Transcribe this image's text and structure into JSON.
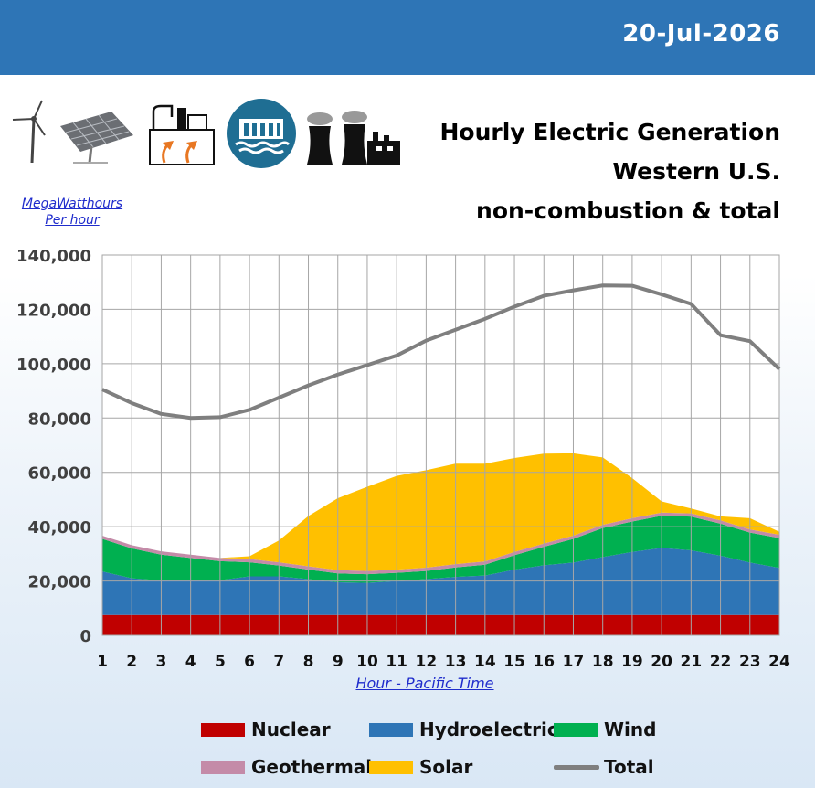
{
  "header": {
    "date": "20-Jul-2026"
  },
  "icons": [
    "wind-turbine-icon",
    "solar-panel-icon",
    "geothermal-plant-icon",
    "hydro-dam-icon",
    "nuclear-plant-icon"
  ],
  "title": {
    "line1": "Hourly Electric Generation",
    "line2": "Western U.S.",
    "line3": "non-combustion & total"
  },
  "colors": {
    "header_bg": "#2e75b6",
    "nuclear": "#c00000",
    "hydro": "#2e75b6",
    "wind": "#00b050",
    "geothermal": "#c48ba8",
    "solar": "#ffc000",
    "total": "#7f7f7f"
  },
  "chart_data": {
    "type": "area",
    "stacked": true,
    "ylabel": [
      "MegaWatthours",
      "Per hour"
    ],
    "xlabel": "Hour - Pacific Time",
    "x": [
      1,
      2,
      3,
      4,
      5,
      6,
      7,
      8,
      9,
      10,
      11,
      12,
      13,
      14,
      15,
      16,
      17,
      18,
      19,
      20,
      21,
      22,
      23,
      24
    ],
    "ylim": [
      0,
      140000
    ],
    "yticks": [
      0,
      20000,
      40000,
      60000,
      80000,
      100000,
      120000,
      140000
    ],
    "ytick_labels": [
      "0",
      "20,000",
      "40,000",
      "60,000",
      "80,000",
      "100,000",
      "120,000",
      "140,000"
    ],
    "grid": true,
    "legend_position": "bottom",
    "series": [
      {
        "name": "Nuclear",
        "kind": "area",
        "values": [
          7500,
          7500,
          7500,
          7500,
          7500,
          7500,
          7500,
          7500,
          7500,
          7500,
          7500,
          7500,
          7500,
          7500,
          7500,
          7500,
          7500,
          7500,
          7500,
          7500,
          7500,
          7500,
          7500,
          7500
        ]
      },
      {
        "name": "Hydroelectric",
        "kind": "area",
        "values": [
          16000,
          13500,
          12700,
          12800,
          12800,
          14200,
          14200,
          13200,
          12000,
          11800,
          12500,
          13200,
          14000,
          14500,
          16700,
          18300,
          19300,
          21300,
          23200,
          24700,
          23800,
          21800,
          19300,
          17300
        ]
      },
      {
        "name": "Wind",
        "kind": "area",
        "values": [
          12000,
          11000,
          9500,
          8200,
          7000,
          5200,
          4000,
          3500,
          3300,
          3200,
          3000,
          3000,
          3500,
          4000,
          5300,
          6800,
          8700,
          10700,
          11200,
          11800,
          12400,
          11800,
          11000,
          11000
        ]
      },
      {
        "name": "Geothermal",
        "kind": "area",
        "values": [
          1200,
          1200,
          1200,
          1200,
          1200,
          1200,
          1200,
          1200,
          1200,
          1200,
          1200,
          1200,
          1200,
          1200,
          1200,
          1200,
          1200,
          1200,
          1200,
          1200,
          1200,
          1200,
          1200,
          1200
        ]
      },
      {
        "name": "Solar",
        "kind": "area",
        "values": [
          0,
          0,
          0,
          0,
          0,
          1000,
          8000,
          18500,
          26500,
          31000,
          34500,
          35900,
          37000,
          36000,
          34600,
          33100,
          30300,
          24800,
          14800,
          4100,
          1800,
          1500,
          4100,
          1100
        ]
      },
      {
        "name": "Total",
        "kind": "line",
        "values": [
          90500,
          85500,
          81500,
          80000,
          80300,
          83000,
          87500,
          92000,
          96000,
          99500,
          103000,
          108500,
          112500,
          116500,
          121000,
          125000,
          127000,
          128800,
          128700,
          125500,
          122000,
          110500,
          108300,
          98000
        ]
      }
    ]
  },
  "legend": [
    {
      "label": "Nuclear",
      "type": "swatch",
      "color": "#c00000"
    },
    {
      "label": "Hydroelectric",
      "type": "swatch",
      "color": "#2e75b6"
    },
    {
      "label": "Wind",
      "type": "swatch",
      "color": "#00b050"
    },
    {
      "label": "Geothermal",
      "type": "swatch",
      "color": "#c48ba8"
    },
    {
      "label": "Solar",
      "type": "swatch",
      "color": "#ffc000"
    },
    {
      "label": "Total",
      "type": "line",
      "color": "#7f7f7f"
    }
  ]
}
